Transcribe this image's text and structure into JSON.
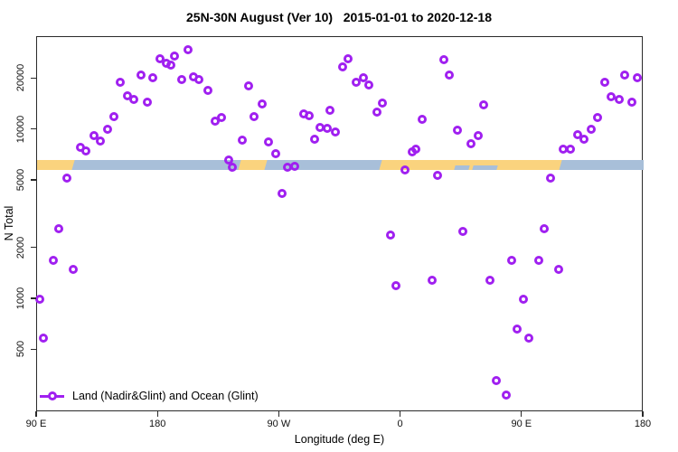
{
  "chart_data": {
    "type": "scatter",
    "title": "25N-30N August (Ver 10)   2015-01-01 to 2020-12-18",
    "xlabel": "Longitude (deg E)",
    "ylabel": "N Total",
    "legend_label": "Land (Nadir&Glint) and Ocean (Glint)",
    "x_axis": {
      "range": [
        90,
        540
      ],
      "note": "continuous eastward longitude: 90E to 180 to 90W to 0 to 90E to 180",
      "ticks": [
        {
          "lon": 90,
          "label": "90 E"
        },
        {
          "lon": 180,
          "label": "180"
        },
        {
          "lon": 270,
          "label": "90 W"
        },
        {
          "lon": 360,
          "label": "0"
        },
        {
          "lon": 450,
          "label": "90 E"
        },
        {
          "lon": 540,
          "label": "180"
        }
      ]
    },
    "y_axis": {
      "scale": "log",
      "range": [
        215,
        35300
      ],
      "ticks": [
        500,
        1000,
        2000,
        5000,
        10000,
        20000
      ]
    },
    "grid": false,
    "legend_position": "bottom-left-inside",
    "band": {
      "meaning": "surface type strip (land=orange, ocean=blue) vs longitude",
      "value_range": [
        5800,
        6650
      ],
      "segments": [
        {
          "from": 90,
          "to": 119,
          "type": "land"
        },
        {
          "from": 119,
          "to": 242,
          "type": "ocean"
        },
        {
          "from": 242,
          "to": 262,
          "type": "land"
        },
        {
          "from": 262,
          "to": 347,
          "type": "ocean"
        },
        {
          "from": 347,
          "to": 480,
          "type": "land"
        },
        {
          "from": 402,
          "to": 409,
          "type": "ocean",
          "half": "lower"
        },
        {
          "from": 415,
          "to": 429,
          "type": "ocean",
          "half": "lower"
        },
        {
          "from": 480,
          "to": 540,
          "type": "ocean"
        }
      ]
    },
    "points": [
      [
        92,
        1000
      ],
      [
        95,
        590
      ],
      [
        102,
        1700
      ],
      [
        106,
        2600
      ],
      [
        112,
        5200
      ],
      [
        117,
        1500
      ],
      [
        122,
        7900
      ],
      [
        126,
        7500
      ],
      [
        132,
        9300
      ],
      [
        137,
        8600
      ],
      [
        142,
        10100
      ],
      [
        147,
        11900
      ],
      [
        152,
        19100
      ],
      [
        157,
        15900
      ],
      [
        162,
        15100
      ],
      [
        167,
        21100
      ],
      [
        172,
        14600
      ],
      [
        176,
        20300
      ],
      [
        181,
        26300
      ],
      [
        186,
        24700
      ],
      [
        189,
        24200
      ],
      [
        192,
        27400
      ],
      [
        197,
        19900
      ],
      [
        202,
        29700
      ],
      [
        206,
        20500
      ],
      [
        210,
        19900
      ],
      [
        217,
        17000
      ],
      [
        222,
        11300
      ],
      [
        227,
        11800
      ],
      [
        232,
        6600
      ],
      [
        235,
        6000
      ],
      [
        242,
        8700
      ],
      [
        247,
        18100
      ],
      [
        251,
        11900
      ],
      [
        257,
        14200
      ],
      [
        262,
        8500
      ],
      [
        267,
        7200
      ],
      [
        272,
        4200
      ],
      [
        276,
        6000
      ],
      [
        281,
        6100
      ],
      [
        288,
        12400
      ],
      [
        292,
        12100
      ],
      [
        296,
        8800
      ],
      [
        300,
        10300
      ],
      [
        305,
        10200
      ],
      [
        307,
        13000
      ],
      [
        311,
        9700
      ],
      [
        317,
        23600
      ],
      [
        321,
        26200
      ],
      [
        327,
        19100
      ],
      [
        332,
        20300
      ],
      [
        336,
        18300
      ],
      [
        342,
        12800
      ],
      [
        346,
        14400
      ],
      [
        352,
        2400
      ],
      [
        356,
        1200
      ],
      [
        363,
        5800
      ],
      [
        368,
        7400
      ],
      [
        371,
        7700
      ],
      [
        376,
        11600
      ],
      [
        383,
        1300
      ],
      [
        387,
        5400
      ],
      [
        392,
        26000
      ],
      [
        396,
        21000
      ],
      [
        402,
        9900
      ],
      [
        406,
        2500
      ],
      [
        412,
        8300
      ],
      [
        417,
        9300
      ],
      [
        421,
        14000
      ],
      [
        426,
        1300
      ],
      [
        431,
        330
      ],
      [
        438,
        270
      ],
      [
        442,
        1700
      ],
      [
        446,
        670
      ],
      [
        451,
        1000
      ],
      [
        455,
        590
      ],
      [
        462,
        1700
      ],
      [
        466,
        2600
      ],
      [
        471,
        5200
      ],
      [
        477,
        1500
      ],
      [
        480,
        7700
      ],
      [
        486,
        7700
      ],
      [
        491,
        9400
      ],
      [
        496,
        8800
      ],
      [
        501,
        10100
      ],
      [
        506,
        11800
      ],
      [
        511,
        19100
      ],
      [
        516,
        15700
      ],
      [
        522,
        15200
      ],
      [
        526,
        21100
      ],
      [
        531,
        14600
      ],
      [
        535,
        20300
      ]
    ],
    "colors": {
      "marker": "#A020F0",
      "land_band": "#FAD37E",
      "ocean_band": "#A8BFD9",
      "axis": "#2a2a2a"
    }
  }
}
